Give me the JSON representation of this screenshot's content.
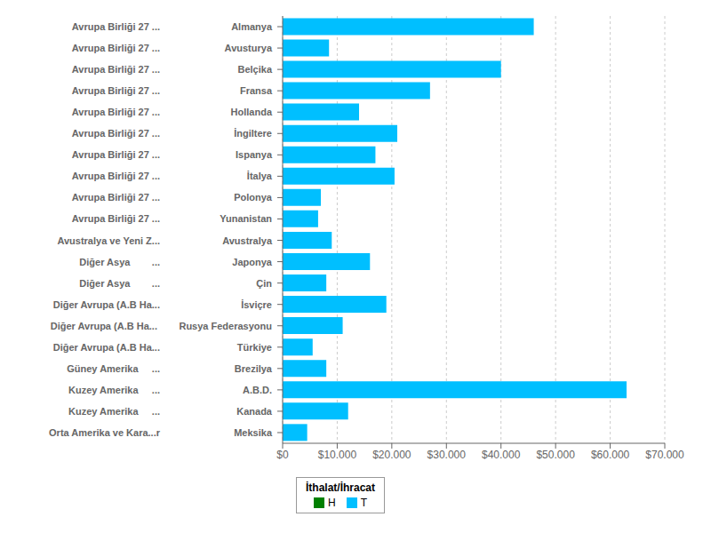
{
  "chart_data": {
    "type": "bar",
    "orientation": "horizontal",
    "categories": [
      "Almanya",
      "Avusturya",
      "Belçika",
      "Fransa",
      "Hollanda",
      "İngiltere",
      "Ispanya",
      "İtalya",
      "Polonya",
      "Yunanistan",
      "Avustralya",
      "Japonya",
      "Çin",
      "İsviçre",
      "Rusya Federasyonu",
      "Türkiye",
      "Brezilya",
      "A.B.D.",
      "Kanada",
      "Meksika"
    ],
    "regions": [
      "Avrupa Birliği 27 ...",
      "Avrupa Birliği 27 ...",
      "Avrupa Birliği 27 ...",
      "Avrupa Birliği 27 ...",
      "Avrupa Birliği 27 ...",
      "Avrupa Birliği 27 ...",
      "Avrupa Birliği 27 ...",
      "Avrupa Birliği 27 ...",
      "Avrupa Birliği 27 ...",
      "Avrupa Birliği 27 ...",
      "Avustralya ve Yeni Z...",
      "Diğer Asya        ...",
      "Diğer Asya        ...",
      "Diğer Avrupa (A.B Ha...",
      "Diğer Avrupa (A.B Ha... ",
      "Diğer Avrupa (A.B Ha...",
      "Güney Amerika     ...",
      "Kuzey Amerika     ...",
      "Kuzey Amerika     ...",
      "Orta Amerika ve Kara...r"
    ],
    "values": [
      46000,
      8500,
      40000,
      27000,
      14000,
      21000,
      17000,
      20500,
      7000,
      6500,
      9000,
      16000,
      8000,
      19000,
      11000,
      5500,
      8000,
      63000,
      12000,
      4500
    ],
    "color": "#00BFFF",
    "xlim": [
      0,
      70000
    ],
    "xticks": [
      {
        "value": 0,
        "label": "$0"
      },
      {
        "value": 10000,
        "label": "$10.000"
      },
      {
        "value": 20000,
        "label": "$20.000"
      },
      {
        "value": 30000,
        "label": "$30.000"
      },
      {
        "value": 40000,
        "label": "$40.000"
      },
      {
        "value": 50000,
        "label": "$50.000"
      },
      {
        "value": 60000,
        "label": "$60.000"
      },
      {
        "value": 70000,
        "label": "$70.000"
      }
    ],
    "grid": true,
    "legend": "bottom",
    "legend_title": "İthalat/İhracat",
    "legend_entries": [
      {
        "name": "H",
        "color": "#008000"
      },
      {
        "name": "T",
        "color": "#00BFFF"
      }
    ]
  }
}
